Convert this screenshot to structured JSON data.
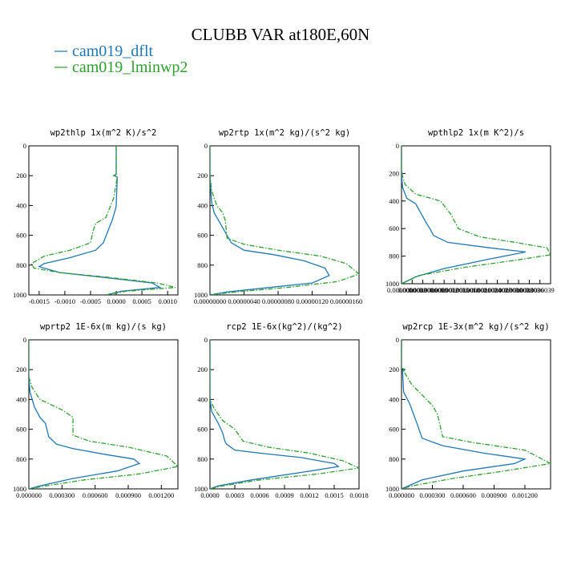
{
  "figure": {
    "title": "CLUBB VAR at180E,60N",
    "legend": [
      {
        "label": "cam019_dflt",
        "color": "#1f77b4",
        "dash": "solid"
      },
      {
        "label": "cam019_lminwp2",
        "color": "#2ca02c",
        "dash": "dashdot"
      }
    ]
  },
  "chart_data": [
    {
      "type": "line",
      "title": "wp2thlp  1x(m^2 K)/s^2",
      "xlabel": "",
      "ylabel": "",
      "xlim": [
        -0.0017,
        0.0012
      ],
      "ylim": [
        1000,
        0
      ],
      "y_inverted": true,
      "xticks": [
        -0.0015,
        -0.001,
        -0.0005,
        0,
        0.0005,
        0.001
      ],
      "xtick_labels": [
        "-0.0015",
        "-0.0010",
        "-0.0005",
        "0.0000",
        "0.0005",
        "0.0010"
      ],
      "yticks": [
        0,
        200,
        400,
        600,
        800,
        1000
      ],
      "ytick_labels": [
        "0",
        "200",
        "400",
        "600",
        "800",
        "1000"
      ],
      "grid": false,
      "series": [
        {
          "name": "cam019_dflt",
          "color": "#1f77b4",
          "dash": "solid",
          "x": [
            0,
            0,
            -3e-05,
            2e-05,
            0,
            -2e-05,
            -8e-05,
            -0.00015,
            -0.00025,
            -0.0004,
            -0.0009,
            -0.0014,
            -0.0015,
            -0.0011,
            -0.0003,
            0.0007,
            0.00085,
            0.0001,
            -0.0002
          ],
          "y": [
            0,
            190,
            200,
            210,
            400,
            430,
            500,
            560,
            650,
            700,
            750,
            790,
            810,
            850,
            880,
            920,
            950,
            975,
            1000
          ]
        },
        {
          "name": "cam019_lminwp2",
          "color": "#2ca02c",
          "dash": "dashdot",
          "x": [
            0,
            0,
            -5e-05,
            2e-05,
            -5e-05,
            -0.0002,
            -0.0004,
            -0.00045,
            -0.0005,
            -0.0009,
            -0.0014,
            -0.00165,
            -0.0016,
            -0.0011,
            -0.0002,
            0.0008,
            0.00115,
            0.0002,
            -0.0002
          ],
          "y": [
            0,
            190,
            200,
            210,
            350,
            480,
            520,
            570,
            650,
            700,
            740,
            790,
            820,
            850,
            880,
            920,
            950,
            975,
            1000
          ]
        }
      ]
    },
    {
      "type": "line",
      "title": "wp2rtp  1x(m^2 kg)/(s^2 kg)",
      "xlabel": "",
      "ylabel": "",
      "xlim": [
        0,
        1.75e-06
      ],
      "ylim": [
        1000,
        0
      ],
      "y_inverted": true,
      "xticks": [
        0,
        4e-07,
        8e-07,
        1.2e-06,
        1.6e-06
      ],
      "xtick_labels": [
        "0.00000000",
        "0.00000040",
        "0.00000080",
        "0.00000120",
        "0.00000160"
      ],
      "yticks": [
        0,
        200,
        400,
        600,
        800,
        1000
      ],
      "ytick_labels": [
        "0",
        "200",
        "400",
        "600",
        "800",
        "1000"
      ],
      "grid": false,
      "series": [
        {
          "name": "cam019_dflt",
          "color": "#1f77b4",
          "dash": "solid",
          "x": [
            0,
            0,
            1e-08,
            2e-08,
            5e-08,
            1.2e-07,
            1.8e-07,
            2.5e-07,
            4e-07,
            7.5e-07,
            1.1e-06,
            1.35e-06,
            1.4e-06,
            1.2e-06,
            7e-07,
            2e-07,
            0
          ],
          "y": [
            0,
            200,
            300,
            380,
            450,
            520,
            580,
            650,
            700,
            730,
            770,
            820,
            870,
            920,
            950,
            980,
            1000
          ]
        },
        {
          "name": "cam019_lminwp2",
          "color": "#2ca02c",
          "dash": "dashdot",
          "x": [
            0,
            0,
            2e-08,
            8e-08,
            1.5e-07,
            1.8e-07,
            2e-07,
            4e-07,
            8e-07,
            1.3e-06,
            1.6e-06,
            1.75e-06,
            1.5e-06,
            9e-07,
            3e-07,
            0
          ],
          "y": [
            0,
            200,
            300,
            400,
            450,
            500,
            620,
            660,
            700,
            740,
            790,
            860,
            910,
            950,
            980,
            1000
          ]
        }
      ]
    },
    {
      "type": "line",
      "title": "wpthlp2  1x(m K^2)/s",
      "xlabel": "",
      "ylabel": "",
      "xlim": [
        0,
        4.2e-06
      ],
      "ylim": [
        1000,
        0
      ],
      "y_inverted": true,
      "xticks": [
        0,
        3e-07,
        6e-07,
        9e-07,
        1.2e-06,
        1.5e-06,
        1.8e-06,
        2.1e-06,
        2.4e-06,
        2.7e-06,
        3e-06,
        3.3e-06,
        3.6e-06,
        3.9e-06
      ],
      "xtick_labels": [
        "0.0000000",
        "0.0000003",
        "0.0000006",
        "0.0000009",
        "0.0000012",
        "0.0000015",
        "0.0000018",
        "0.0000021",
        "0.0000024",
        "0.0000027",
        "0.0000030",
        "0.0000033",
        "0.0000036",
        "0.0000039"
      ],
      "yticks": [
        0,
        200,
        400,
        600,
        800,
        1000
      ],
      "ytick_labels": [
        "0",
        "200",
        "400",
        "600",
        "800",
        "1000"
      ],
      "grid": false,
      "series": [
        {
          "name": "cam019_dflt",
          "color": "#1f77b4",
          "dash": "solid",
          "x": [
            0,
            0,
            2e-08,
            0,
            3e-08,
            1.5e-07,
            4e-07,
            7e-07,
            8e-07,
            9e-07,
            1.3e-06,
            2.5e-06,
            3.5e-06,
            2.5e-06,
            1.2e-06,
            4e-07,
            0
          ],
          "y": [
            0,
            190,
            200,
            210,
            300,
            380,
            420,
            560,
            600,
            650,
            700,
            740,
            770,
            820,
            890,
            950,
            1000
          ]
        },
        {
          "name": "cam019_lminwp2",
          "color": "#2ca02c",
          "dash": "dashdot",
          "x": [
            0,
            0,
            3e-08,
            2e-08,
            1e-07,
            4e-07,
            1.1e-06,
            1.4e-06,
            1.6e-06,
            2.2e-06,
            3.2e-06,
            4.1e-06,
            4.2e-06,
            3.2e-06,
            1.8e-06,
            5e-07,
            0
          ],
          "y": [
            0,
            190,
            200,
            210,
            280,
            350,
            400,
            500,
            600,
            660,
            700,
            740,
            790,
            830,
            880,
            940,
            1000
          ]
        }
      ]
    },
    {
      "type": "line",
      "title": "wprtp2  1E-6x(m kg)/(s kg)",
      "xlabel": "",
      "ylabel": "",
      "xlim": [
        0,
        0.00135
      ],
      "ylim": [
        1000,
        0
      ],
      "y_inverted": true,
      "xticks": [
        0,
        0.0003,
        0.0006,
        0.0009,
        0.0012
      ],
      "xtick_labels": [
        "0.000000",
        "0.000300",
        "0.000600",
        "0.000900",
        "0.001200"
      ],
      "yticks": [
        0,
        200,
        400,
        600,
        800,
        1000
      ],
      "ytick_labels": [
        "0",
        "200",
        "400",
        "600",
        "800",
        "1000"
      ],
      "grid": false,
      "series": [
        {
          "name": "cam019_dflt",
          "color": "#1f77b4",
          "dash": "solid",
          "x": [
            0,
            0,
            1e-05,
            5e-05,
            0.0001,
            0.00015,
            0.00018,
            0.00025,
            0.0004,
            0.0007,
            0.00095,
            0.001,
            0.0008,
            0.0004,
            0.0001,
            0
          ],
          "y": [
            0,
            250,
            350,
            450,
            520,
            560,
            650,
            700,
            730,
            770,
            800,
            830,
            880,
            930,
            980,
            1000
          ]
        },
        {
          "name": "cam019_lminwp2",
          "color": "#2ca02c",
          "dash": "dashdot",
          "x": [
            0,
            0,
            3e-05,
            0.0001,
            0.0003,
            0.0004,
            0.0004,
            0.00055,
            0.0009,
            0.00125,
            0.00135,
            0.001,
            0.0005,
            0.00015,
            0
          ],
          "y": [
            0,
            250,
            320,
            400,
            470,
            520,
            640,
            680,
            720,
            780,
            850,
            900,
            940,
            980,
            1000
          ]
        }
      ]
    },
    {
      "type": "line",
      "title": "rcp2  1E-6x(kg^2)/(kg^2)",
      "xlabel": "",
      "ylabel": "",
      "xlim": [
        0,
        0.0018
      ],
      "ylim": [
        1000,
        0
      ],
      "y_inverted": true,
      "xticks": [
        0,
        0.0003,
        0.0006,
        0.0009,
        0.0012,
        0.0015,
        0.0018
      ],
      "xtick_labels": [
        "0.0000",
        "0.0003",
        "0.0006",
        "0.0009",
        "0.0012",
        "0.0015",
        "0.0018"
      ],
      "yticks": [
        0,
        200,
        400,
        600,
        800,
        1000
      ],
      "ytick_labels": [
        "0",
        "200",
        "400",
        "600",
        "800",
        "1000"
      ],
      "grid": false,
      "series": [
        {
          "name": "cam019_dflt",
          "color": "#1f77b4",
          "dash": "solid",
          "x": [
            0,
            0,
            2e-05,
            0.0001,
            0.00015,
            0.00018,
            0.0002,
            0.0003,
            0.0006,
            0.0011,
            0.0015,
            0.00155,
            0.0011,
            0.0005,
            0.0001,
            0
          ],
          "y": [
            0,
            400,
            480,
            560,
            620,
            680,
            700,
            740,
            760,
            790,
            830,
            850,
            890,
            940,
            980,
            1000
          ]
        },
        {
          "name": "cam019_lminwp2",
          "color": "#2ca02c",
          "dash": "dashdot",
          "x": [
            0,
            0,
            5e-05,
            0.00015,
            0.0003,
            0.00035,
            0.0004,
            0.0007,
            0.0012,
            0.0016,
            0.0018,
            0.0013,
            0.0006,
            0.00015,
            0
          ],
          "y": [
            0,
            400,
            460,
            540,
            600,
            640,
            680,
            720,
            760,
            810,
            860,
            900,
            940,
            980,
            1000
          ]
        }
      ]
    },
    {
      "type": "line",
      "title": "wp2rcp  1E-3x(m^2 kg)/(s^2 kg)",
      "xlabel": "",
      "ylabel": "",
      "xlim": [
        0,
        0.00145
      ],
      "ylim": [
        1000,
        0
      ],
      "y_inverted": true,
      "xticks": [
        0,
        0.0003,
        0.0006,
        0.0009,
        0.0012
      ],
      "xtick_labels": [
        "0.000000",
        "0.000300",
        "0.000600",
        "0.000900",
        "0.001200"
      ],
      "yticks": [
        0,
        200,
        400,
        600,
        800,
        1000
      ],
      "ytick_labels": [
        "0",
        "200",
        "400",
        "600",
        "800",
        "1000"
      ],
      "grid": false,
      "series": [
        {
          "name": "cam019_dflt",
          "color": "#1f77b4",
          "dash": "solid",
          "x": [
            0,
            0,
            3e-05,
            1e-05,
            2e-05,
            8e-05,
            0.00015,
            0.0002,
            0.0004,
            0.0008,
            0.0012,
            0.0011,
            0.0006,
            0.0002,
            0
          ],
          "y": [
            0,
            190,
            200,
            210,
            350,
            430,
            560,
            660,
            710,
            760,
            800,
            830,
            880,
            940,
            1000
          ]
        },
        {
          "name": "cam019_lminwp2",
          "color": "#2ca02c",
          "dash": "dashdot",
          "x": [
            0,
            0,
            4e-05,
            2e-05,
            0.0001,
            0.0003,
            0.00035,
            0.0004,
            0.0007,
            0.0012,
            0.00145,
            0.001,
            0.0005,
            0.0001,
            0
          ],
          "y": [
            0,
            190,
            200,
            210,
            300,
            440,
            500,
            650,
            690,
            740,
            830,
            880,
            930,
            980,
            1000
          ]
        }
      ]
    }
  ]
}
